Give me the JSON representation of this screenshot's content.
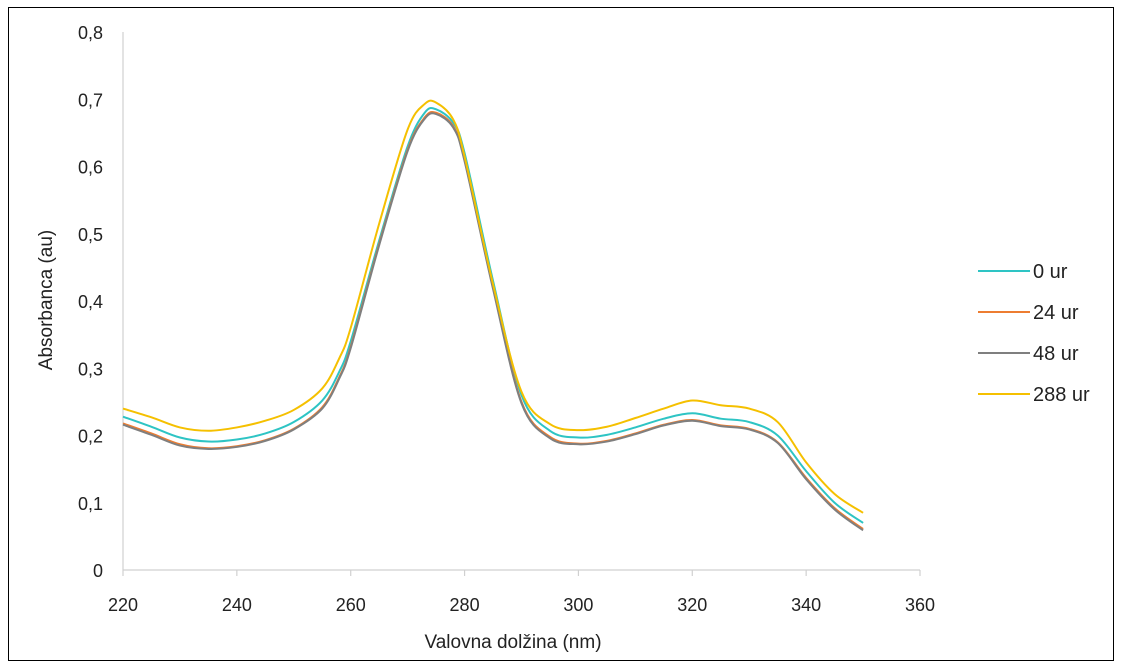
{
  "chart_data": {
    "type": "line",
    "title": "",
    "xlabel": "Valovna dolžina (nm)",
    "ylabel": "Absorbanca (au)",
    "xlim": [
      220,
      360
    ],
    "ylim": [
      0,
      0.8
    ],
    "x_ticks": [
      220,
      240,
      260,
      280,
      300,
      320,
      340,
      360
    ],
    "x_tick_labels": [
      "220",
      "240",
      "260",
      "280",
      "300",
      "320",
      "340",
      "360"
    ],
    "y_ticks": [
      0,
      0.1,
      0.2,
      0.3,
      0.4,
      0.5,
      0.6,
      0.7,
      0.8
    ],
    "y_tick_labels": [
      "0",
      "0,1",
      "0,2",
      "0,3",
      "0,4",
      "0,5",
      "0,6",
      "0,7",
      "0,8"
    ],
    "grid": false,
    "legend_position": "right",
    "x": [
      220,
      225,
      230,
      235,
      240,
      245,
      250,
      255,
      258,
      260,
      265,
      270,
      273,
      275,
      278,
      280,
      285,
      290,
      295,
      300,
      305,
      310,
      315,
      320,
      325,
      330,
      335,
      340,
      345,
      350
    ],
    "series": [
      {
        "name": "0 ur",
        "color": "#2ec4c4",
        "values": [
          0.228,
          0.213,
          0.197,
          0.191,
          0.194,
          0.203,
          0.22,
          0.252,
          0.295,
          0.34,
          0.49,
          0.63,
          0.68,
          0.685,
          0.665,
          0.62,
          0.43,
          0.26,
          0.207,
          0.197,
          0.201,
          0.212,
          0.225,
          0.233,
          0.225,
          0.22,
          0.2,
          0.147,
          0.1,
          0.07
        ]
      },
      {
        "name": "24 ur",
        "color": "#ed7d31",
        "values": [
          0.218,
          0.203,
          0.187,
          0.181,
          0.184,
          0.193,
          0.21,
          0.242,
          0.287,
          0.332,
          0.485,
          0.625,
          0.673,
          0.68,
          0.66,
          0.61,
          0.42,
          0.25,
          0.198,
          0.188,
          0.192,
          0.203,
          0.216,
          0.223,
          0.215,
          0.21,
          0.19,
          0.137,
          0.092,
          0.061
        ]
      },
      {
        "name": "48 ur",
        "color": "#7f7f7f",
        "values": [
          0.216,
          0.201,
          0.185,
          0.18,
          0.183,
          0.192,
          0.209,
          0.24,
          0.285,
          0.33,
          0.483,
          0.623,
          0.671,
          0.678,
          0.658,
          0.608,
          0.418,
          0.248,
          0.196,
          0.187,
          0.191,
          0.202,
          0.215,
          0.222,
          0.214,
          0.209,
          0.189,
          0.135,
          0.09,
          0.059
        ]
      },
      {
        "name": "288 ur",
        "color": "#f5c000",
        "values": [
          0.24,
          0.227,
          0.212,
          0.207,
          0.212,
          0.222,
          0.238,
          0.27,
          0.315,
          0.36,
          0.515,
          0.655,
          0.693,
          0.695,
          0.67,
          0.615,
          0.425,
          0.265,
          0.217,
          0.208,
          0.213,
          0.226,
          0.24,
          0.252,
          0.245,
          0.24,
          0.22,
          0.16,
          0.113,
          0.085
        ]
      }
    ]
  }
}
